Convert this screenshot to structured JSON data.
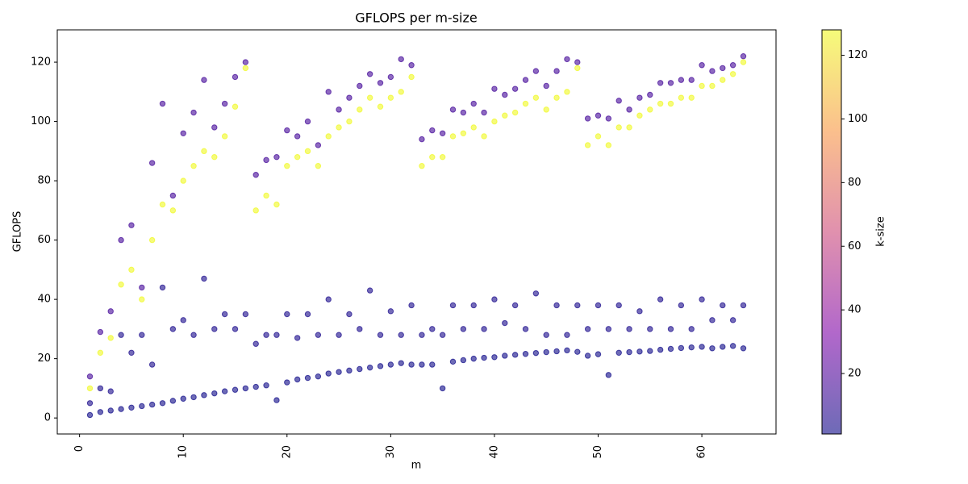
{
  "chart_data": {
    "type": "scatter",
    "title": "GFLOPS per m-size",
    "xlabel": "m",
    "ylabel": "GFLOPS",
    "colorbar_label": "k-size",
    "colormap": "plasma",
    "xlim": [
      -2.15,
      67.15
    ],
    "xticks": [
      0,
      10,
      20,
      30,
      40,
      50,
      60
    ],
    "ylim": [
      -5.4,
      130.9
    ],
    "yticks": [
      0,
      20,
      40,
      60,
      80,
      100,
      120
    ],
    "clim": [
      1,
      128
    ],
    "cticks": [
      20,
      40,
      60,
      80,
      100,
      120
    ],
    "x": [
      1,
      2,
      3,
      4,
      5,
      6,
      7,
      8,
      9,
      10,
      11,
      12,
      13,
      14,
      15,
      16,
      17,
      18,
      19,
      20,
      21,
      22,
      23,
      24,
      25,
      26,
      27,
      28,
      29,
      30,
      31,
      32,
      33,
      34,
      35,
      36,
      37,
      38,
      39,
      40,
      41,
      42,
      43,
      44,
      45,
      46,
      47,
      48,
      49,
      50,
      51,
      52,
      53,
      54,
      55,
      56,
      57,
      58,
      59,
      60,
      61,
      62,
      63,
      64,
      1,
      2,
      3,
      4,
      5,
      6,
      7,
      8,
      9,
      10,
      11,
      12,
      13,
      14,
      15,
      16,
      17,
      18,
      19,
      20,
      21,
      22,
      23,
      24,
      25,
      26,
      27,
      28,
      29,
      30,
      31,
      32,
      33,
      34,
      35,
      36,
      37,
      38,
      39,
      40,
      41,
      42,
      43,
      44,
      45,
      46,
      47,
      48,
      49,
      50,
      51,
      52,
      53,
      54,
      55,
      56,
      57,
      58,
      59,
      60,
      61,
      62,
      63,
      64,
      1,
      2,
      3,
      4,
      5,
      6,
      7,
      8,
      9,
      10,
      11,
      12,
      13,
      14,
      15,
      16,
      17,
      18,
      19,
      20,
      21,
      22,
      23,
      24,
      25,
      26,
      27,
      28,
      29,
      30,
      31,
      32,
      33,
      34,
      35,
      36,
      37,
      38,
      39,
      40,
      41,
      42,
      43,
      44,
      45,
      46,
      47,
      48,
      49,
      50,
      51,
      52,
      53,
      54,
      55,
      56,
      57,
      58,
      59,
      60,
      61,
      62,
      63,
      64,
      1,
      2,
      3,
      4,
      5,
      6,
      7,
      8,
      9,
      10,
      11,
      12,
      13,
      14,
      15,
      16,
      17,
      18,
      19,
      20,
      21,
      22,
      23,
      24,
      25,
      26,
      27,
      28,
      29,
      30,
      31,
      32,
      33,
      34,
      35,
      36,
      37,
      38,
      39,
      40,
      41,
      42,
      43,
      44,
      45,
      46,
      47,
      48,
      49,
      50,
      51,
      52,
      53,
      54,
      55,
      56,
      57,
      58,
      59,
      60,
      61,
      62,
      63,
      64
    ],
    "y": [
      14,
      29,
      36,
      60,
      65,
      44,
      86,
      106,
      75,
      96,
      103,
      114,
      98,
      106,
      115,
      120,
      82,
      87,
      88,
      97,
      95,
      100,
      92,
      110,
      104,
      108,
      112,
      116,
      113,
      115,
      121,
      119,
      94,
      97,
      96,
      104,
      103,
      106,
      103,
      111,
      109,
      111,
      114,
      117,
      112,
      117,
      121,
      120,
      101,
      102,
      101,
      107,
      104,
      108,
      109,
      113,
      113,
      114,
      114,
      119,
      117,
      118,
      119,
      122,
      10,
      22,
      27,
      45,
      50,
      40,
      60,
      72,
      70,
      80,
      85,
      90,
      88,
      95,
      105,
      118,
      70,
      75,
      72,
      85,
      88,
      90,
      85,
      95,
      98,
      100,
      104,
      108,
      105,
      108,
      110,
      115,
      85,
      88,
      88,
      95,
      96,
      98,
      95,
      100,
      102,
      103,
      106,
      108,
      104,
      108,
      110,
      118,
      92,
      95,
      92,
      98,
      98,
      102,
      104,
      106,
      106,
      108,
      108,
      112,
      112,
      114,
      116,
      120,
      5,
      10,
      9,
      28,
      22,
      28,
      18,
      44,
      30,
      33,
      28,
      47,
      30,
      35,
      30,
      35,
      25,
      28,
      28,
      35,
      27,
      35,
      28,
      40,
      28,
      35,
      30,
      43,
      28,
      36,
      28,
      38,
      28,
      30,
      28,
      38,
      30,
      38,
      30,
      40,
      32,
      38,
      30,
      42,
      28,
      38,
      28,
      38,
      30,
      38,
      30,
      38,
      30,
      36,
      30,
      40,
      30,
      38,
      30,
      40,
      33,
      38,
      33,
      38,
      1,
      2,
      2.5,
      3,
      3.5,
      4,
      4.5,
      5,
      5.8,
      6.5,
      7,
      7.7,
      8.3,
      9,
      9.5,
      10,
      10.5,
      11,
      6,
      12,
      13,
      13.5,
      14,
      15,
      15.5,
      16,
      16.5,
      17,
      17.5,
      18,
      18.5,
      18,
      18,
      18,
      10,
      19,
      19.5,
      20,
      20.3,
      20.5,
      21,
      21.3,
      21.6,
      21.9,
      22.2,
      22.5,
      22.8,
      22.3,
      21,
      21.5,
      14.5,
      22,
      22.2,
      22.4,
      22.6,
      23,
      23.3,
      23.6,
      23.8,
      24,
      23.5,
      24,
      24.3,
      23.5
    ],
    "c": [
      16,
      16,
      16,
      16,
      16,
      16,
      16,
      16,
      16,
      16,
      16,
      16,
      16,
      16,
      16,
      16,
      16,
      16,
      16,
      16,
      16,
      16,
      16,
      16,
      16,
      16,
      16,
      16,
      16,
      16,
      16,
      16,
      16,
      16,
      16,
      16,
      16,
      16,
      16,
      16,
      16,
      16,
      16,
      16,
      16,
      16,
      16,
      16,
      16,
      16,
      16,
      16,
      16,
      16,
      16,
      16,
      16,
      16,
      16,
      16,
      16,
      16,
      16,
      16,
      128,
      128,
      128,
      128,
      128,
      128,
      128,
      128,
      128,
      128,
      128,
      128,
      128,
      128,
      128,
      128,
      128,
      128,
      128,
      128,
      128,
      128,
      128,
      128,
      128,
      128,
      128,
      128,
      128,
      128,
      128,
      128,
      128,
      128,
      128,
      128,
      128,
      128,
      128,
      128,
      128,
      128,
      128,
      128,
      128,
      128,
      128,
      128,
      128,
      128,
      128,
      128,
      128,
      128,
      128,
      128,
      128,
      128,
      128,
      128,
      128,
      128,
      128,
      128,
      4,
      4,
      4,
      4,
      4,
      4,
      4,
      4,
      4,
      4,
      4,
      4,
      4,
      4,
      4,
      4,
      4,
      4,
      4,
      4,
      4,
      4,
      4,
      4,
      4,
      4,
      4,
      4,
      4,
      4,
      4,
      4,
      4,
      4,
      4,
      4,
      4,
      4,
      4,
      4,
      4,
      4,
      4,
      4,
      4,
      4,
      4,
      4,
      4,
      4,
      4,
      4,
      4,
      4,
      4,
      4,
      4,
      4,
      4,
      4,
      4,
      4,
      4,
      4,
      1,
      1,
      1,
      1,
      1,
      1,
      1,
      1,
      1,
      1,
      1,
      1,
      1,
      1,
      1,
      1,
      1,
      1,
      1,
      1,
      1,
      1,
      1,
      1,
      1,
      1,
      1,
      1,
      1,
      1,
      1,
      1,
      1,
      1,
      1,
      1,
      1,
      1,
      1,
      1,
      1,
      1,
      1,
      1,
      1,
      1,
      1,
      1,
      1,
      1,
      1,
      1,
      1,
      1,
      1,
      1,
      1,
      1,
      1,
      1,
      1,
      1,
      1,
      1
    ]
  }
}
